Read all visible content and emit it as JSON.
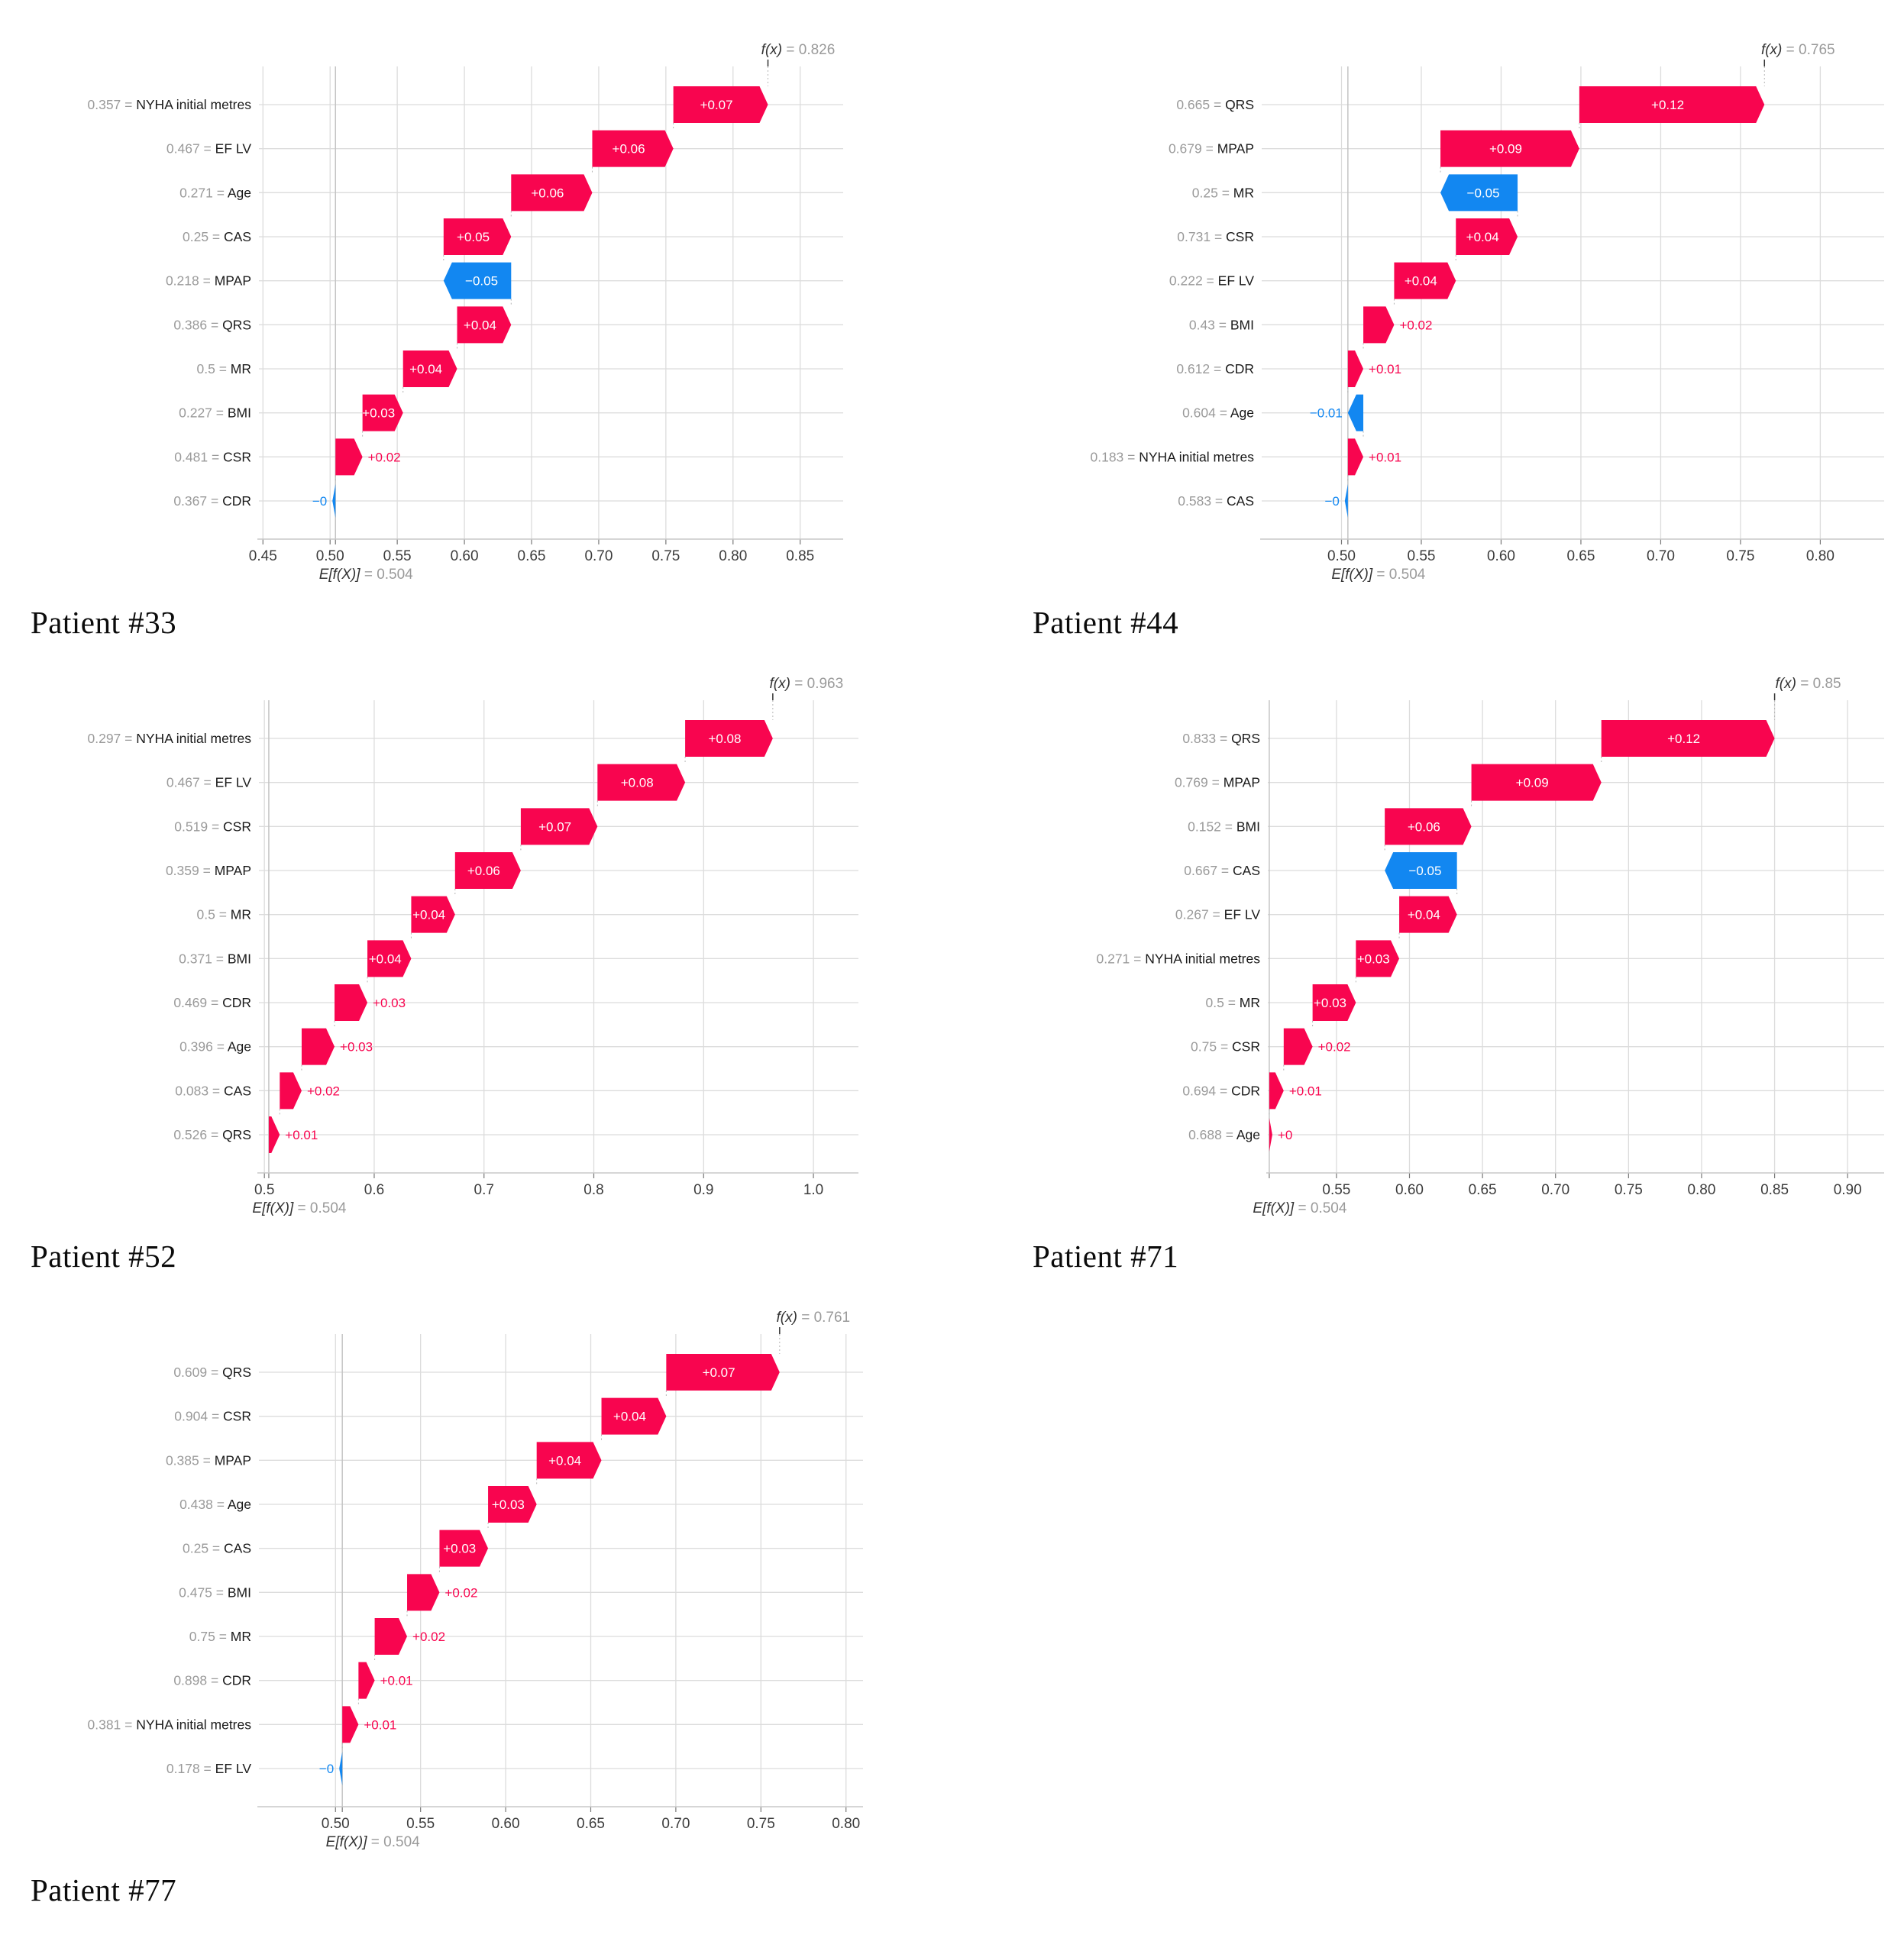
{
  "colors": {
    "positive_bar": "#f8054f",
    "negative_bar": "#1287f1",
    "grid_line": "#dcdcdc",
    "base_ref_line": "#c4c4c4",
    "axis_text": "#3c3c3c",
    "muted_text": "#9a9a9a",
    "feature_text": "#1a1a1a",
    "inside_bar_text": "#ffffff"
  },
  "chart_data": [
    {
      "type": "bar",
      "subtype": "shap-waterfall",
      "title": "Patient #33",
      "fx_label": "f(x)",
      "fx_value": 0.826,
      "fx_value_text": "= 0.826",
      "base_label": "E[f(X)]",
      "base_value": 0.504,
      "base_value_text": "= 0.504",
      "xlim": [
        0.447,
        0.882
      ],
      "x_tick_values": [
        0.45,
        0.5,
        0.55,
        0.6,
        0.65,
        0.7,
        0.75,
        0.8,
        0.85
      ],
      "x_tick_labels": [
        "0.45",
        "0.50",
        "0.55",
        "0.60",
        "0.65",
        "0.70",
        "0.75",
        "0.80",
        "0.85"
      ],
      "grid": true,
      "rows": [
        {
          "feature_value": "0.357",
          "feature": "NYHA initial metres",
          "shap": 0.07,
          "shap_label": "+0.07"
        },
        {
          "feature_value": "0.467",
          "feature": "EF LV",
          "shap": 0.06,
          "shap_label": "+0.06"
        },
        {
          "feature_value": "0.271",
          "feature": "Age",
          "shap": 0.06,
          "shap_label": "+0.06"
        },
        {
          "feature_value": "0.25",
          "feature": "CAS",
          "shap": 0.05,
          "shap_label": "+0.05"
        },
        {
          "feature_value": "0.218",
          "feature": "MPAP",
          "shap": -0.05,
          "shap_label": "−0.05"
        },
        {
          "feature_value": "0.386",
          "feature": "QRS",
          "shap": 0.04,
          "shap_label": "+0.04"
        },
        {
          "feature_value": "0.5",
          "feature": "MR",
          "shap": 0.04,
          "shap_label": "+0.04"
        },
        {
          "feature_value": "0.227",
          "feature": "BMI",
          "shap": 0.03,
          "shap_label": "+0.03"
        },
        {
          "feature_value": "0.481",
          "feature": "CSR",
          "shap": 0.02,
          "shap_label": "+0.02"
        },
        {
          "feature_value": "0.367",
          "feature": "CDR",
          "shap": 0,
          "shap_label": "−0"
        }
      ]
    },
    {
      "type": "bar",
      "subtype": "shap-waterfall",
      "title": "Patient #44",
      "fx_label": "f(x)",
      "fx_value": 0.765,
      "fx_value_text": "= 0.765",
      "base_label": "E[f(X)]",
      "base_value": 0.504,
      "base_value_text": "= 0.504",
      "xlim": [
        0.45,
        0.84
      ],
      "x_tick_values": [
        0.5,
        0.55,
        0.6,
        0.65,
        0.7,
        0.75,
        0.8
      ],
      "x_tick_labels": [
        "0.50",
        "0.55",
        "0.60",
        "0.65",
        "0.70",
        "0.75",
        "0.80"
      ],
      "grid": true,
      "rows": [
        {
          "feature_value": "0.665",
          "feature": "QRS",
          "shap": 0.12,
          "shap_label": "+0.12"
        },
        {
          "feature_value": "0.679",
          "feature": "MPAP",
          "shap": 0.09,
          "shap_label": "+0.09"
        },
        {
          "feature_value": "0.25",
          "feature": "MR",
          "shap": -0.05,
          "shap_label": "−0.05"
        },
        {
          "feature_value": "0.731",
          "feature": "CSR",
          "shap": 0.04,
          "shap_label": "+0.04"
        },
        {
          "feature_value": "0.222",
          "feature": "EF LV",
          "shap": 0.04,
          "shap_label": "+0.04"
        },
        {
          "feature_value": "0.43",
          "feature": "BMI",
          "shap": 0.02,
          "shap_label": "+0.02"
        },
        {
          "feature_value": "0.612",
          "feature": "CDR",
          "shap": 0.01,
          "shap_label": "+0.01"
        },
        {
          "feature_value": "0.604",
          "feature": "Age",
          "shap": -0.01,
          "shap_label": "−0.01"
        },
        {
          "feature_value": "0.183",
          "feature": "NYHA initial metres",
          "shap": 0.01,
          "shap_label": "+0.01"
        },
        {
          "feature_value": "0.583",
          "feature": "CAS",
          "shap": 0,
          "shap_label": "−0"
        }
      ]
    },
    {
      "type": "bar",
      "subtype": "shap-waterfall",
      "title": "Patient #52",
      "fx_label": "f(x)",
      "fx_value": 0.963,
      "fx_value_text": "= 0.963",
      "base_label": "E[f(X)]",
      "base_value": 0.504,
      "base_value_text": "= 0.504",
      "xlim": [
        0.495,
        1.041
      ],
      "x_tick_values": [
        0.5,
        0.6,
        0.7,
        0.8,
        0.9,
        1.0
      ],
      "x_tick_labels": [
        "0.5",
        "0.6",
        "0.7",
        "0.8",
        "0.9",
        "1.0"
      ],
      "grid": true,
      "rows": [
        {
          "feature_value": "0.297",
          "feature": "NYHA initial metres",
          "shap": 0.08,
          "shap_label": "+0.08"
        },
        {
          "feature_value": "0.467",
          "feature": "EF LV",
          "shap": 0.08,
          "shap_label": "+0.08"
        },
        {
          "feature_value": "0.519",
          "feature": "CSR",
          "shap": 0.07,
          "shap_label": "+0.07"
        },
        {
          "feature_value": "0.359",
          "feature": "MPAP",
          "shap": 0.06,
          "shap_label": "+0.06"
        },
        {
          "feature_value": "0.5",
          "feature": "MR",
          "shap": 0.04,
          "shap_label": "+0.04"
        },
        {
          "feature_value": "0.371",
          "feature": "BMI",
          "shap": 0.04,
          "shap_label": "+0.04"
        },
        {
          "feature_value": "0.469",
          "feature": "CDR",
          "shap": 0.03,
          "shap_label": "+0.03"
        },
        {
          "feature_value": "0.396",
          "feature": "Age",
          "shap": 0.03,
          "shap_label": "+0.03"
        },
        {
          "feature_value": "0.083",
          "feature": "CAS",
          "shap": 0.02,
          "shap_label": "+0.02"
        },
        {
          "feature_value": "0.526",
          "feature": "QRS",
          "shap": 0.01,
          "shap_label": "+0.01"
        }
      ]
    },
    {
      "type": "bar",
      "subtype": "shap-waterfall",
      "title": "Patient #71",
      "fx_label": "f(x)",
      "fx_value": 0.85,
      "fx_value_text": "= 0.85",
      "base_label": "E[f(X)]",
      "base_value": 0.504,
      "base_value_text": "= 0.504",
      "xlim": [
        0.503,
        0.925
      ],
      "x_tick_values": [
        0.55,
        0.6,
        0.65,
        0.7,
        0.75,
        0.8,
        0.85,
        0.9
      ],
      "x_tick_labels": [
        "0.55",
        "0.60",
        "0.65",
        "0.70",
        "0.75",
        "0.80",
        "0.85",
        "0.90"
      ],
      "grid": true,
      "rows": [
        {
          "feature_value": "0.833",
          "feature": "QRS",
          "shap": 0.12,
          "shap_label": "+0.12"
        },
        {
          "feature_value": "0.769",
          "feature": "MPAP",
          "shap": 0.09,
          "shap_label": "+0.09"
        },
        {
          "feature_value": "0.152",
          "feature": "BMI",
          "shap": 0.06,
          "shap_label": "+0.06"
        },
        {
          "feature_value": "0.667",
          "feature": "CAS",
          "shap": -0.05,
          "shap_label": "−0.05"
        },
        {
          "feature_value": "0.267",
          "feature": "EF LV",
          "shap": 0.04,
          "shap_label": "+0.04"
        },
        {
          "feature_value": "0.271",
          "feature": "NYHA initial metres",
          "shap": 0.03,
          "shap_label": "+0.03"
        },
        {
          "feature_value": "0.5",
          "feature": "MR",
          "shap": 0.03,
          "shap_label": "+0.03"
        },
        {
          "feature_value": "0.75",
          "feature": "CSR",
          "shap": 0.02,
          "shap_label": "+0.02"
        },
        {
          "feature_value": "0.694",
          "feature": "CDR",
          "shap": 0.01,
          "shap_label": "+0.01"
        },
        {
          "feature_value": "0.688",
          "feature": "Age",
          "shap": 0,
          "shap_label": "+0"
        }
      ]
    },
    {
      "type": "bar",
      "subtype": "shap-waterfall",
      "title": "Patient #77",
      "fx_label": "f(x)",
      "fx_value": 0.761,
      "fx_value_text": "= 0.761",
      "base_label": "E[f(X)]",
      "base_value": 0.504,
      "base_value_text": "= 0.504",
      "xlim": [
        0.455,
        0.81
      ],
      "x_tick_values": [
        0.5,
        0.55,
        0.6,
        0.65,
        0.7,
        0.75,
        0.8
      ],
      "x_tick_labels": [
        "0.50",
        "0.55",
        "0.60",
        "0.65",
        "0.70",
        "0.75",
        "0.80"
      ],
      "grid": true,
      "rows": [
        {
          "feature_value": "0.609",
          "feature": "QRS",
          "shap": 0.07,
          "shap_label": "+0.07"
        },
        {
          "feature_value": "0.904",
          "feature": "CSR",
          "shap": 0.04,
          "shap_label": "+0.04"
        },
        {
          "feature_value": "0.385",
          "feature": "MPAP",
          "shap": 0.04,
          "shap_label": "+0.04"
        },
        {
          "feature_value": "0.438",
          "feature": "Age",
          "shap": 0.03,
          "shap_label": "+0.03"
        },
        {
          "feature_value": "0.25",
          "feature": "CAS",
          "shap": 0.03,
          "shap_label": "+0.03"
        },
        {
          "feature_value": "0.475",
          "feature": "BMI",
          "shap": 0.02,
          "shap_label": "+0.02"
        },
        {
          "feature_value": "0.75",
          "feature": "MR",
          "shap": 0.02,
          "shap_label": "+0.02"
        },
        {
          "feature_value": "0.898",
          "feature": "CDR",
          "shap": 0.01,
          "shap_label": "+0.01"
        },
        {
          "feature_value": "0.381",
          "feature": "NYHA initial metres",
          "shap": 0.01,
          "shap_label": "+0.01"
        },
        {
          "feature_value": "0.178",
          "feature": "EF LV",
          "shap": 0,
          "shap_label": "−0"
        }
      ]
    }
  ]
}
